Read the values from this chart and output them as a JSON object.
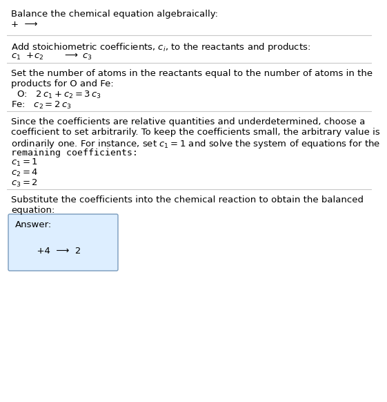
{
  "title": "Balance the chemical equation algebraically:",
  "line1": "+  ⟶",
  "section1_header": "Add stoichiometric coefficients, $c_i$, to the reactants and products:",
  "section1_line1": "$c_1$  +$c_2$",
  "section1_line2": "⟶ $c_3$",
  "section2_header1": "Set the number of atoms in the reactants equal to the number of atoms in the",
  "section2_header2": "products for O and Fe:",
  "section2_O": " O:   $2\\,c_1 + c_2 = 3\\,c_3$",
  "section2_Fe": "Fe:   $c_2 = 2\\,c_3$",
  "section3_header1": "Since the coefficients are relative quantities and underdetermined, choose a",
  "section3_header2": "coefficient to set arbitrarily. To keep the coefficients small, the arbitrary value is",
  "section3_header3": "ordinarily one. For instance, set $c_1 = 1$ and solve the system of equations for the",
  "section3_header4": "remaining coefficients:",
  "section3_c1": "$c_1 = 1$",
  "section3_c2": "$c_2 = 4$",
  "section3_c3": "$c_3 = 2$",
  "section4_header1": "Substitute the coefficients into the chemical reaction to obtain the balanced",
  "section4_header2": "equation:",
  "answer_label": "Answer:",
  "answer_line": "      +4  ⟶  2",
  "bg_color": "#ffffff",
  "text_color": "#000000",
  "line_color": "#c8c8c8",
  "answer_box_color": "#ddeeff",
  "answer_box_border": "#7799bb",
  "font_size": 9.5
}
